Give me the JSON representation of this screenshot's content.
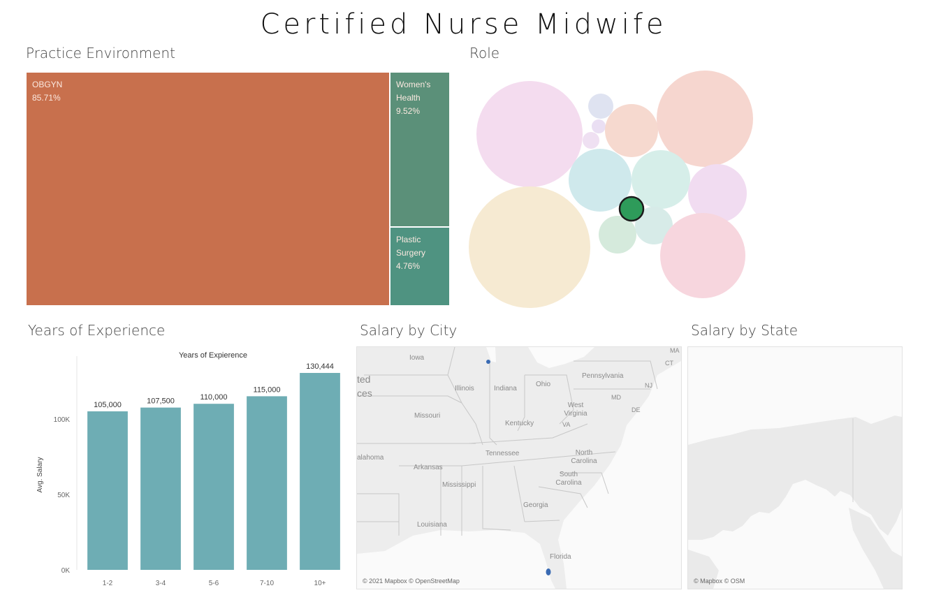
{
  "title": "Certified Nurse Midwife",
  "practice_environment": {
    "title": "Practice Environment",
    "cells": [
      {
        "name": "OBGYN",
        "value": "85.71%",
        "color": "#c8704d"
      },
      {
        "name": "Women's Health",
        "value": "9.52%",
        "color": "#5b9079"
      },
      {
        "name": "Plastic Surgery",
        "value": "4.76%",
        "color": "#4f9381"
      }
    ]
  },
  "role": {
    "title": "Role",
    "highlight_color": "#2e9b5a"
  },
  "years_of_experience": {
    "title": "Years of Experience"
  },
  "salary_by_city": {
    "title": "Salary by City",
    "credit": "© 2021 Mapbox © OpenStreetMap",
    "labels": [
      "Iowa",
      "Illinois",
      "Indiana",
      "Ohio",
      "Pennsylvania",
      "Missouri",
      "Kentucky",
      "West Virginia",
      "Tennessee",
      "North Carolina",
      "Arkansas",
      "South Carolina",
      "Mississippi",
      "Georgia",
      "Louisiana",
      "Florida",
      "alahoma",
      "ted",
      "ces",
      "MA",
      "CT",
      "NJ",
      "MD",
      "DE",
      "VA"
    ]
  },
  "salary_by_state": {
    "title": "Salary by State",
    "credit": "© Mapbox © OSM"
  },
  "chart_data": [
    {
      "type": "bar",
      "title": "Years of Expierence",
      "xlabel": "",
      "ylabel": "Avg. Salary",
      "categories": [
        "1-2",
        "3-4",
        "5-6",
        "7-10",
        "10+"
      ],
      "values": [
        105000,
        107500,
        110000,
        115000,
        130444
      ],
      "data_labels": [
        "105,000",
        "107,500",
        "110,000",
        "115,000",
        "130,444"
      ],
      "yticks": [
        "0K",
        "50K",
        "100K"
      ],
      "ylim": [
        0,
        136000
      ],
      "color": "#6eadb4",
      "grid": false
    }
  ]
}
